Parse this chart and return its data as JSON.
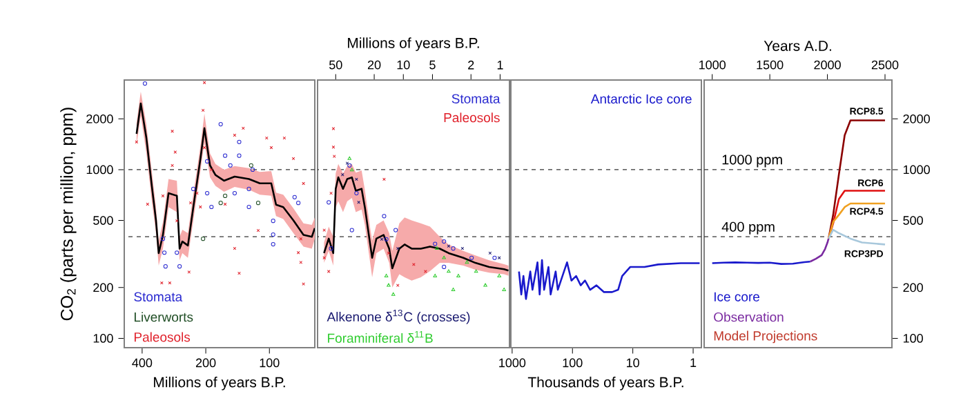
{
  "chart_data": [
    {
      "type": "scatter",
      "xlabel": "Millions of years B.P.",
      "ylabel": "CO$_{2}$ (parts per million, ppm)",
      "log": "xy",
      "xlim": [
        486,
        61
      ],
      "xticks": [
        400,
        200,
        100
      ],
      "ylim": [
        88,
        3400
      ],
      "yticks": [
        100,
        200,
        500,
        1000,
        2000
      ],
      "ref_lines": [
        {
          "axis": "y",
          "value": 1000,
          "color": "#333333",
          "line_style": "dashed"
        },
        {
          "axis": "y",
          "value": 400,
          "color": "#333333",
          "line_style": "dashed"
        }
      ],
      "series": [
        {
          "name": "Stomata",
          "color": "#2b2bd0",
          "marker": "circle",
          "x": [
            388,
            319,
            314,
            310,
            274,
            266,
            229,
            197,
            197,
            170,
            162,
            188,
            139,
            139,
            146,
            125,
            120,
            96,
            96,
            96,
            76,
            73,
            125,
            153
          ],
          "values": [
            3240,
            389,
            322,
            267,
            322,
            267,
            768,
            1120,
            725,
            1860,
            1210,
            601,
            1460,
            1210,
            725,
            601,
            1000,
            497,
            412,
            361,
            687,
            635,
            768,
            1060
          ]
        },
        {
          "name": "Liverworts",
          "color": "#1f4d24",
          "marker": "circle",
          "x": [
            170,
            162,
            113,
            122,
            206
          ],
          "values": [
            635,
            699,
            635,
            1059,
            389
          ]
        },
        {
          "name": "Paleosols",
          "color": "#e0202a",
          "marker": "cross",
          "x": [
            425,
            377,
            323,
            296,
            288,
            279,
            288,
            274,
            240,
            236,
            206,
            203,
            203,
            220,
            212,
            188,
            146,
            133,
            146,
            139,
            103,
            98,
            85,
            77,
            69,
            71,
            71,
            69,
            73,
            113,
            162,
            319
          ],
          "values": [
            1460,
            624,
            213,
            213,
            1690,
            1270,
            1059,
            497,
            247,
            635,
            2250,
            3280,
            1350,
            725,
            601,
            1000,
            1600,
            1760,
            341,
            243,
            1540,
            1350,
            1540,
            1163,
            828,
            389,
            282,
            210,
            322,
            436,
            624,
            699
          ]
        },
        {
          "type": "line",
          "color": "#000000",
          "x": [
            425,
            406,
            382,
            360,
            344,
            334,
            319,
            300,
            274,
            266,
            258,
            243,
            229,
            212,
            203,
            191,
            180,
            164,
            146,
            125,
            111,
            98,
            93,
            86,
            77,
            69,
            63,
            61
          ],
          "values": [
            1630,
            2470,
            1540,
            800,
            500,
            320,
            410,
            725,
            700,
            340,
            375,
            355,
            600,
            1160,
            1760,
            1060,
            930,
            860,
            910,
            880,
            830,
            830,
            620,
            600,
            500,
            410,
            400,
            450
          ],
          "lower": [
            1400,
            2100,
            1250,
            650,
            420,
            270,
            340,
            600,
            560,
            290,
            320,
            300,
            500,
            980,
            1450,
            900,
            800,
            740,
            790,
            760,
            710,
            700,
            530,
            510,
            420,
            350,
            340,
            390
          ],
          "upper": [
            1900,
            2900,
            1850,
            980,
            600,
            380,
            490,
            880,
            860,
            400,
            440,
            420,
            720,
            1380,
            2150,
            1250,
            1080,
            1000,
            1050,
            1020,
            970,
            980,
            730,
            710,
            590,
            480,
            470,
            520
          ]
        }
      ]
    },
    {
      "type": "scatter",
      "xlabel": "Millions of years B.P.",
      "log": "xy",
      "tick_labels": "x",
      "xlim": [
        77,
        0.8
      ],
      "xticks": [
        50,
        20,
        10,
        5,
        2,
        1
      ],
      "ylim": [
        88,
        3400
      ],
      "ref_lines": [
        {
          "axis": "y",
          "value": 1000,
          "color": "#333333",
          "line_style": "dashed"
        },
        {
          "axis": "y",
          "value": 400,
          "color": "#333333",
          "line_style": "dashed"
        }
      ],
      "series": [
        {
          "name": "Stomata",
          "color": "#2b2bd0",
          "marker": "circle",
          "x": [
            59,
            55.8,
            36,
            34,
            30.5,
            15.8,
            15,
            12,
            4.7,
            3.8,
            3.05,
            1.97,
            1.14,
            3.8
          ],
          "values": [
            640,
            341,
            1059,
            438,
            725,
            530,
            387,
            438,
            363,
            375,
            341,
            300,
            300,
            265
          ]
        },
        {
          "name": "Paleosols",
          "color": "#e0202a",
          "marker": "cross",
          "x": [
            52.8,
            52.8,
            51.7,
            65.7,
            59,
            15.8,
            14.2,
            11.4,
            7.8,
            5.9,
            65.7,
            55.8
          ],
          "values": [
            1750,
            1360,
            1200,
            300,
            249,
            877,
            320,
            206,
            274,
            249,
            438,
            725
          ]
        },
        {
          "name": "Alkenone δ$^{13}$C (crosses)",
          "color": "#1a1a70",
          "marker": "cross",
          "x": [
            38,
            30.5,
            28.9,
            16.7,
            11.4,
            3.4,
            2.45,
            1.27,
            1.02,
            42.4
          ],
          "values": [
            1092,
            877,
            640,
            387,
            341,
            352,
            341,
            320,
            300,
            933
          ]
        },
        {
          "name": "Foraminiferal δ$^{11}$B",
          "color": "#2ecc2e",
          "marker": "triangle",
          "x": [
            36,
            34,
            15,
            14.2,
            12.7,
            4.5,
            3.8,
            3.4,
            2.7,
            2.2,
            1.77,
            1.42,
            1.02,
            0.91,
            3.05,
            4.7
          ],
          "values": [
            1163,
            994,
            234,
            206,
            182,
            341,
            300,
            249,
            234,
            282,
            249,
            206,
            234,
            194,
            194,
            234
          ]
        },
        {
          "type": "line",
          "color": "#000000",
          "x": [
            66,
            59,
            53,
            50,
            47,
            42,
            38,
            34,
            31,
            27,
            25,
            22,
            21,
            19,
            16,
            14,
            13,
            11,
            9.7,
            8.2,
            6.6,
            5.3,
            4.2,
            3.4,
            2.4,
            1.8,
            1.3,
            0.91,
            0.82
          ],
          "values": [
            320,
            390,
            320,
            770,
            900,
            770,
            880,
            900,
            750,
            770,
            600,
            360,
            300,
            390,
            410,
            340,
            260,
            340,
            360,
            340,
            340,
            350,
            340,
            320,
            300,
            280,
            265,
            257,
            252
          ],
          "lower": [
            280,
            330,
            270,
            600,
            650,
            560,
            650,
            680,
            560,
            580,
            470,
            280,
            230,
            320,
            340,
            280,
            200,
            240,
            230,
            220,
            230,
            250,
            280,
            280,
            270,
            255,
            245,
            240,
            235
          ],
          "upper": [
            370,
            460,
            400,
            950,
            1080,
            950,
            1050,
            1080,
            960,
            990,
            760,
            450,
            380,
            470,
            500,
            420,
            330,
            480,
            520,
            500,
            480,
            460,
            400,
            360,
            330,
            310,
            290,
            275,
            270
          ]
        }
      ]
    },
    {
      "type": "line",
      "xlabel": "Thousands of years B.P.",
      "log": "xy",
      "tick_labels": "x",
      "xlim": [
        1050,
        0.73
      ],
      "xticks": [
        1000,
        100,
        10,
        1
      ],
      "ylim": [
        88,
        3400
      ],
      "ref_lines": [
        {
          "axis": "y",
          "value": 1000,
          "color": "#333333",
          "line_style": "dashed"
        },
        {
          "axis": "y",
          "value": 400,
          "color": "#333333",
          "line_style": "dashed"
        }
      ],
      "series": [
        {
          "name": "Antarctic Ice core",
          "color": "#1a1acc",
          "x": [
            770,
            705,
            650,
            590,
            500,
            460,
            380,
            350,
            320,
            295,
            250,
            230,
            190,
            175,
            123,
            104,
            87,
            73,
            62,
            51,
            40,
            30,
            22,
            17.5,
            15,
            11,
            6.4,
            3.8,
            1.6,
            0.78
          ],
          "values": [
            249,
            182,
            234,
            171,
            249,
            194,
            282,
            182,
            291,
            194,
            265,
            182,
            249,
            194,
            282,
            220,
            234,
            206,
            220,
            194,
            206,
            188,
            188,
            194,
            234,
            265,
            265,
            274,
            279,
            279
          ]
        }
      ]
    },
    {
      "type": "line",
      "xlabel": "Years A.D.",
      "log": "y",
      "xlim": [
        930,
        2560
      ],
      "xticks": [
        1000,
        1500,
        2000,
        2500
      ],
      "ylim": [
        88,
        3400
      ],
      "yticks": [
        100,
        200,
        500,
        1000,
        2000
      ],
      "ref_lines": [
        {
          "axis": "y",
          "value": 1000,
          "label": "1000 ppm",
          "color": "#333333",
          "line_style": "dashed"
        },
        {
          "axis": "y",
          "value": 400,
          "label": "400 ppm",
          "color": "#333333",
          "line_style": "dashed"
        }
      ],
      "annotations": [
        "Model Projections"
      ],
      "series": [
        {
          "name": "Ice core",
          "color": "#1a1acc",
          "x": [
            1000,
            1100,
            1200,
            1300,
            1400,
            1500,
            1600,
            1700,
            1800,
            1850
          ],
          "values": [
            279,
            281,
            282,
            281,
            280,
            281,
            276,
            277,
            283,
            285
          ]
        },
        {
          "name": "Observation",
          "color": "#7a2aa0",
          "x": [
            1850,
            1900,
            1950,
            1980,
            2000,
            2010
          ],
          "values": [
            285,
            296,
            311,
            339,
            369,
            390
          ]
        },
        {
          "name": "RCP8.5",
          "color": "#8b0000",
          "x": [
            2010,
            2050,
            2100,
            2150,
            2200,
            2250,
            2500
          ],
          "values": [
            390,
            540,
            940,
            1600,
            1960,
            1960,
            1960
          ]
        },
        {
          "name": "RCP6",
          "color": "#e01010",
          "x": [
            2010,
            2050,
            2100,
            2150,
            2200,
            2500
          ],
          "values": [
            390,
            480,
            670,
            750,
            750,
            750
          ]
        },
        {
          "name": "RCP4.5",
          "color": "#f0a020",
          "x": [
            2010,
            2050,
            2100,
            2150,
            2200,
            2500
          ],
          "values": [
            390,
            490,
            540,
            600,
            630,
            630
          ]
        },
        {
          "name": "RCP3PD",
          "color": "#a8c8dc",
          "x": [
            2010,
            2050,
            2100,
            2200,
            2300,
            2500
          ],
          "values": [
            390,
            440,
            420,
            390,
            370,
            360
          ]
        }
      ]
    }
  ]
}
